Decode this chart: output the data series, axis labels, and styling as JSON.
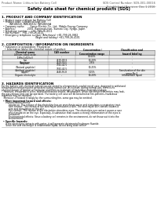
{
  "bg_color": "#ffffff",
  "header_top_left": "Product Name: Lithium Ion Battery Cell",
  "header_top_right": "SDS Control Number: SDS-001-00016\nEstablished / Revision: Dec.1.2016",
  "title": "Safety data sheet for chemical products (SDS)",
  "section1_title": "1. PRODUCT AND COMPANY IDENTIFICATION",
  "section1_lines": [
    "  • Product name: Lithium Ion Battery Cell",
    "  • Product code: Cylindrical-type cell",
    "          INR18650J, INR18650L, INR18650A",
    "  • Company name:       Sanyo Electric Co., Ltd., Mobile Energy Company",
    "  • Address:               2001  Kamimakuhari, Sumoto City, Hyogo, Japan",
    "  • Telephone number:    +81-799-26-4111",
    "  • Fax number:   +81-799-26-4121",
    "  • Emergency telephone number (Afterhours) +81-799-26-3842",
    "                                           (Night and holiday) +81-799-26-4101"
  ],
  "section2_title": "2. COMPOSITION / INFORMATION ON INGREDIENTS",
  "section2_sub1": "  • Substance or preparation: Preparation",
  "section2_sub2": "    • Information about the chemical nature of product:",
  "table_headers": [
    "Chemical name",
    "CAS number",
    "Concentration /\nConcentration range",
    "Classification and\nhazard labeling"
  ],
  "table_subheader": [
    "No./Name",
    "",
    "30-60%",
    ""
  ],
  "table_rows": [
    [
      "Lithium cobalt oxide\n(LiMn-CoO2(x))",
      "-",
      "30-60%",
      "-"
    ],
    [
      "Iron",
      "7439-89-6",
      "10-20%",
      "-"
    ],
    [
      "Aluminum",
      "7429-90-5",
      "2-6%",
      "-"
    ],
    [
      "Graphite\n(Natural graphite)\n(Artificial graphite)",
      "7782-42-5\n7782-42-5",
      "10-25%",
      "-"
    ],
    [
      "Copper",
      "7440-50-8",
      "5-15%",
      "Sensitization of the skin\ngroup No.2"
    ],
    [
      "Organic electrolyte",
      "-",
      "10-20%",
      "Inflammable liquid"
    ]
  ],
  "section3_title": "3. HAZARDS IDENTIFICATION",
  "section3_para1": [
    "For the battery cell, chemical substances are stored in a hermetically-sealed metal case, designed to withstand",
    "temperatures and pressures generated during normal use. As a result, during normal use, there is no",
    "physical danger of ignition or explosion and there is no danger of hazardous materials leakage.",
    "   However, if exposed to a fire, added mechanical shocks, decomposes, when electrolyte/electrolyte may leak,",
    "the gas release vent can be operated. The battery cell case will be breached at fire-patterns, hazardous",
    "materials may be released.",
    "   Moreover, if heated strongly by the surrounding fire, some gas may be emitted."
  ],
  "section3_bullet1_title": "  • Most important hazard and effects:",
  "section3_bullet1_lines": [
    "      Human health effects:",
    "          Inhalation: The release of the electrolyte has an anesthesia action and stimulates a respiratory tract.",
    "          Skin contact: The release of the electrolyte stimulates a skin. The electrolyte skin contact causes a",
    "          sore and stimulation on the skin.",
    "          Eye contact: The release of the electrolyte stimulates eyes. The electrolyte eye contact causes a sore",
    "          and stimulation on the eye. Especially, a substance that causes a strong inflammation of the eyes is",
    "          contained.",
    "          Environmental effects: Since a battery cell remains in the environment, do not throw out it into the",
    "          environment."
  ],
  "section3_bullet2_title": "  • Specific hazards:",
  "section3_bullet2_lines": [
    "      If the electrolyte contacts with water, it will generate detrimental hydrogen fluoride.",
    "      Since the seal electrolyte is inflammable liquid, do not bring close to fire."
  ]
}
